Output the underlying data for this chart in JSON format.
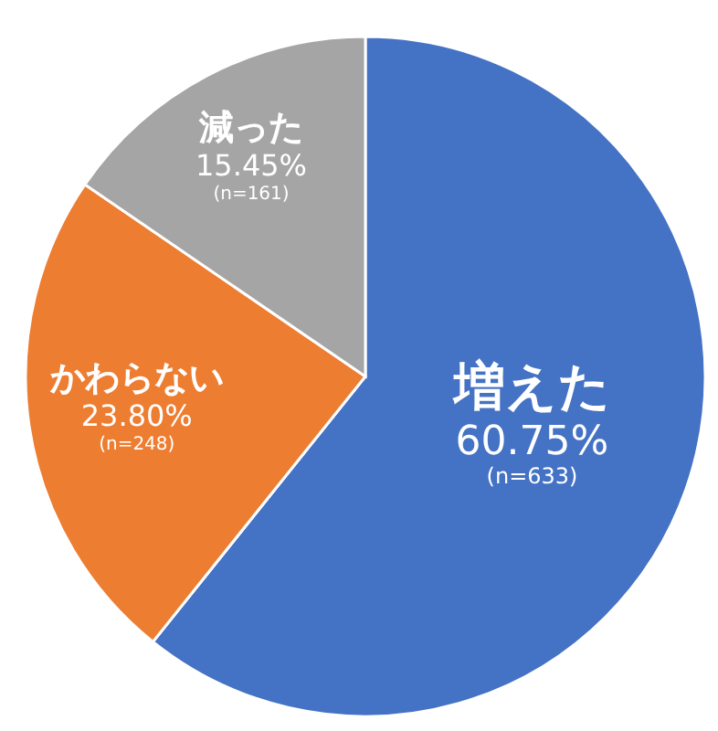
{
  "chart_data": {
    "type": "pie",
    "categories": [
      "増えた",
      "かわらない",
      "減った"
    ],
    "values": [
      60.75,
      23.8,
      15.45
    ],
    "value_labels": [
      "60.75%",
      "23.80%",
      "15.45%"
    ],
    "colors": [
      "#4472c4",
      "#ed7d31",
      "#a5a5a5"
    ],
    "annotations": [
      {
        "text": "(n=633)",
        "x": "増えた"
      },
      {
        "text": "(n=248)",
        "x": "かわらない"
      },
      {
        "text": "(n=161)",
        "x": "減った"
      }
    ]
  }
}
